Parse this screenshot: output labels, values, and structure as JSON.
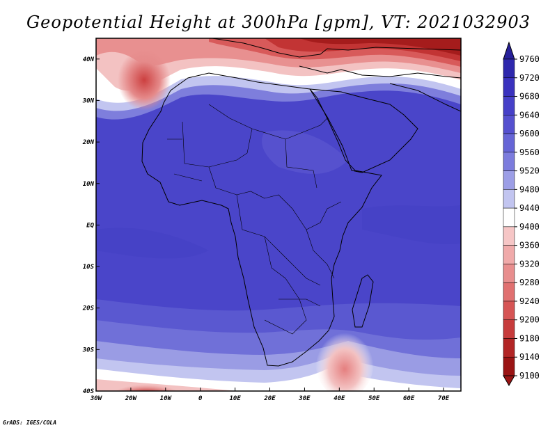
{
  "title": "Geopotential Height at 300hPa [gpm], VT: 2021032903",
  "credit": "GrADS: IGES/COLA",
  "map": {
    "lon_range": [
      -30,
      75
    ],
    "lat_range": [
      -40,
      45
    ],
    "lon_ticks": [
      "30W",
      "20W",
      "10W",
      "0",
      "10E",
      "20E",
      "30E",
      "40E",
      "50E",
      "60E",
      "70E"
    ],
    "lat_ticks": [
      "40N",
      "30N",
      "20N",
      "10N",
      "EQ",
      "10S",
      "20S",
      "30S",
      "40S"
    ]
  },
  "colorbar": {
    "levels": [
      "9760",
      "9720",
      "9680",
      "9640",
      "9600",
      "9560",
      "9520",
      "9480",
      "9440",
      "9400",
      "9360",
      "9320",
      "9280",
      "9240",
      "9200",
      "9180",
      "9140",
      "9100"
    ],
    "colors": [
      "#27209a",
      "#2e28ad",
      "#3a32be",
      "#4640c8",
      "#5550cf",
      "#6665d6",
      "#7c7cdd",
      "#9c9ee6",
      "#c2c5f0",
      "#ffffff",
      "#f6c6c6",
      "#f0aaaa",
      "#e88e8e",
      "#e07070",
      "#d65555",
      "#c73c3c",
      "#b22525",
      "#9a1414"
    ]
  }
}
